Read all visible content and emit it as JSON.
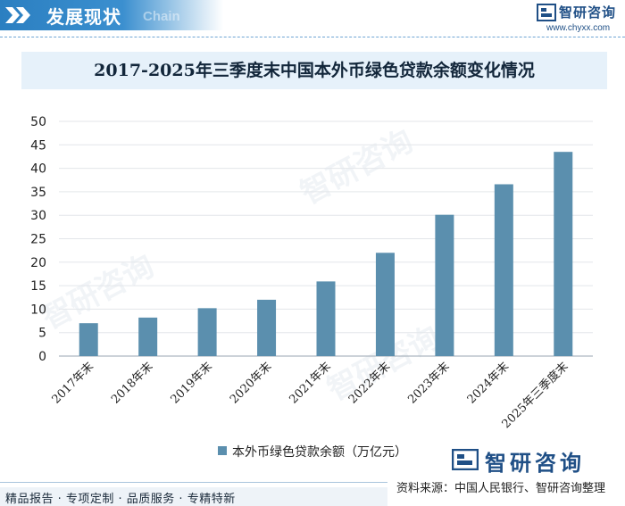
{
  "header": {
    "section_title": "发展现状",
    "section_sub": "Chain",
    "brand_name": "智研咨询",
    "brand_url": "www.chyxx.com"
  },
  "chart_data": {
    "type": "bar",
    "title": "2017-2025年三季度末中国本外币绿色贷款余额变化情况",
    "categories": [
      "2017年末",
      "2018年末",
      "2019年末",
      "2020年末",
      "2021年末",
      "2022年末",
      "2023年末",
      "2024年末",
      "2025年三季度末"
    ],
    "series": [
      {
        "name": "本外币绿色贷款余额（万亿元）",
        "values": [
          7.0,
          8.2,
          10.2,
          12.0,
          15.9,
          22.0,
          30.1,
          36.6,
          43.5
        ],
        "color": "#5b8fae"
      }
    ],
    "ylim": [
      0,
      50
    ],
    "yticks": [
      0,
      5,
      10,
      15,
      20,
      25,
      30,
      35,
      40,
      45,
      50
    ],
    "grid": true,
    "legend_position": "bottom-center"
  },
  "footer": {
    "brand": "智研咨询",
    "source": "资料来源：中国人民银行、智研咨询整理",
    "tagline": "精品报告 · 专项定制 · 品质服务 · 专精特新"
  }
}
